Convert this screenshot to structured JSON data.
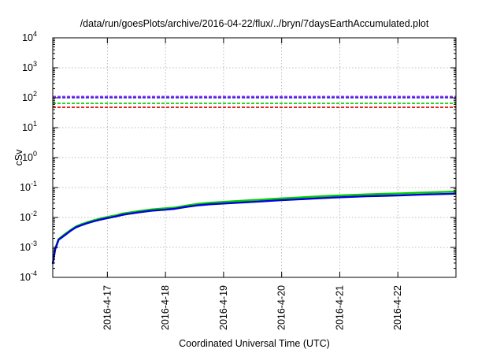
{
  "chart_data": {
    "type": "line",
    "title": "/data/run/goesPlots/archive/2016-04-22/flux/../bryn/7daysEarthAccumulated.plot",
    "xlabel": "Coordinated Universal Time (UTC)",
    "ylabel": "cSv",
    "y_scale": "log",
    "ylim": [
      0.0001,
      10000
    ],
    "xlim": [
      0,
      6.94
    ],
    "grid": true,
    "y_ticks": [
      {
        "value": 0.0001,
        "base": "10",
        "exp": "-4"
      },
      {
        "value": 0.001,
        "base": "10",
        "exp": "-3"
      },
      {
        "value": 0.01,
        "base": "10",
        "exp": "-2"
      },
      {
        "value": 0.1,
        "base": "10",
        "exp": "-1"
      },
      {
        "value": 1,
        "base": "10",
        "exp": "0"
      },
      {
        "value": 10,
        "base": "10",
        "exp": "1"
      },
      {
        "value": 100,
        "base": "10",
        "exp": "2"
      },
      {
        "value": 1000,
        "base": "10",
        "exp": "3"
      },
      {
        "value": 10000,
        "base": "10",
        "exp": "4"
      }
    ],
    "x_ticks": [
      {
        "value": 0.94,
        "label": "2016-4-17"
      },
      {
        "value": 1.94,
        "label": "2016-4-18"
      },
      {
        "value": 2.94,
        "label": "2016-4-19"
      },
      {
        "value": 3.94,
        "label": "2016-4-20"
      },
      {
        "value": 4.94,
        "label": "2016-4-21"
      },
      {
        "value": 5.94,
        "label": "2016-4-22"
      }
    ],
    "reference_lines": [
      {
        "y": 110,
        "color": "#9b30ff"
      },
      {
        "y": 100,
        "color": "#0000cc"
      },
      {
        "y": 65,
        "color": "#00cc00"
      },
      {
        "y": 48,
        "color": "#dd0000"
      }
    ],
    "series": [
      {
        "color": "#00cc00",
        "x": [
          0,
          0.04,
          0.1,
          0.2,
          0.3,
          0.4,
          0.5,
          0.6,
          0.7,
          0.8,
          0.9,
          1.0,
          1.1,
          1.2,
          1.3,
          1.5,
          1.7,
          1.9,
          2.1,
          2.3,
          2.5,
          2.7,
          3.0,
          3.3,
          3.6,
          3.9,
          4.2,
          4.5,
          4.8,
          5.1,
          5.4,
          5.7,
          6.0,
          6.3,
          6.6,
          6.94
        ],
        "values": [
          0.0003,
          0.0009,
          0.0019,
          0.0027,
          0.0037,
          0.005,
          0.006,
          0.007,
          0.008,
          0.009,
          0.01,
          0.011,
          0.012,
          0.0135,
          0.0145,
          0.0165,
          0.0185,
          0.02,
          0.0215,
          0.025,
          0.0285,
          0.031,
          0.0335,
          0.0365,
          0.0395,
          0.043,
          0.046,
          0.0495,
          0.053,
          0.056,
          0.059,
          0.0615,
          0.064,
          0.067,
          0.07,
          0.0735
        ]
      },
      {
        "color": "#0000dd",
        "x": [
          0,
          0.04,
          0.1,
          0.2,
          0.3,
          0.4,
          0.5,
          0.6,
          0.7,
          0.8,
          0.9,
          1.0,
          1.1,
          1.2,
          1.3,
          1.5,
          1.7,
          1.9,
          2.1,
          2.3,
          2.5,
          2.7,
          3.0,
          3.3,
          3.6,
          3.9,
          4.2,
          4.5,
          4.8,
          5.1,
          5.4,
          5.7,
          6.0,
          6.3,
          6.6,
          6.94
        ],
        "values": [
          0.00028,
          0.00085,
          0.0018,
          0.0025,
          0.0035,
          0.0047,
          0.0056,
          0.0065,
          0.0074,
          0.0083,
          0.0092,
          0.01,
          0.011,
          0.0122,
          0.0132,
          0.015,
          0.0168,
          0.018,
          0.0195,
          0.0225,
          0.0255,
          0.0275,
          0.0295,
          0.032,
          0.0345,
          0.0375,
          0.04,
          0.043,
          0.046,
          0.0485,
          0.051,
          0.053,
          0.055,
          0.0575,
          0.06,
          0.0625
        ]
      }
    ]
  }
}
